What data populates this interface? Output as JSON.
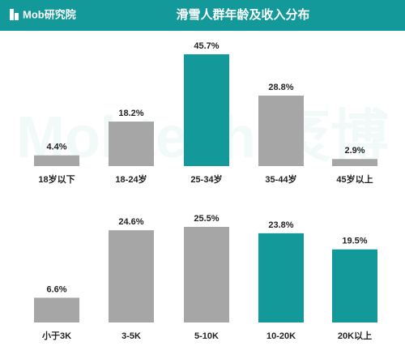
{
  "header": {
    "logo": "Mob研究院",
    "title": "滑雪人群年龄及收入分布"
  },
  "watermark": "Mobtech 袤博",
  "chart_data": [
    {
      "type": "bar",
      "categories": [
        "18岁以下",
        "18-24岁",
        "25-34岁",
        "35-44岁",
        "45岁以上"
      ],
      "values": [
        4.4,
        18.2,
        45.7,
        28.8,
        2.9
      ],
      "value_labels": [
        "4.4%",
        "18.2%",
        "45.7%",
        "28.8%",
        "2.9%"
      ],
      "colors": [
        "#a6a6a6",
        "#a6a6a6",
        "#14999a",
        "#a6a6a6",
        "#a6a6a6"
      ]
    },
    {
      "type": "bar",
      "categories": [
        "小于3K",
        "3-5K",
        "5-10K",
        "10-20K",
        "20K以上"
      ],
      "values": [
        6.6,
        24.6,
        25.5,
        23.8,
        19.5
      ],
      "value_labels": [
        "6.6%",
        "24.6%",
        "25.5%",
        "23.8%",
        "19.5%"
      ],
      "colors": [
        "#a6a6a6",
        "#a6a6a6",
        "#a6a6a6",
        "#14999a",
        "#14999a"
      ]
    }
  ]
}
